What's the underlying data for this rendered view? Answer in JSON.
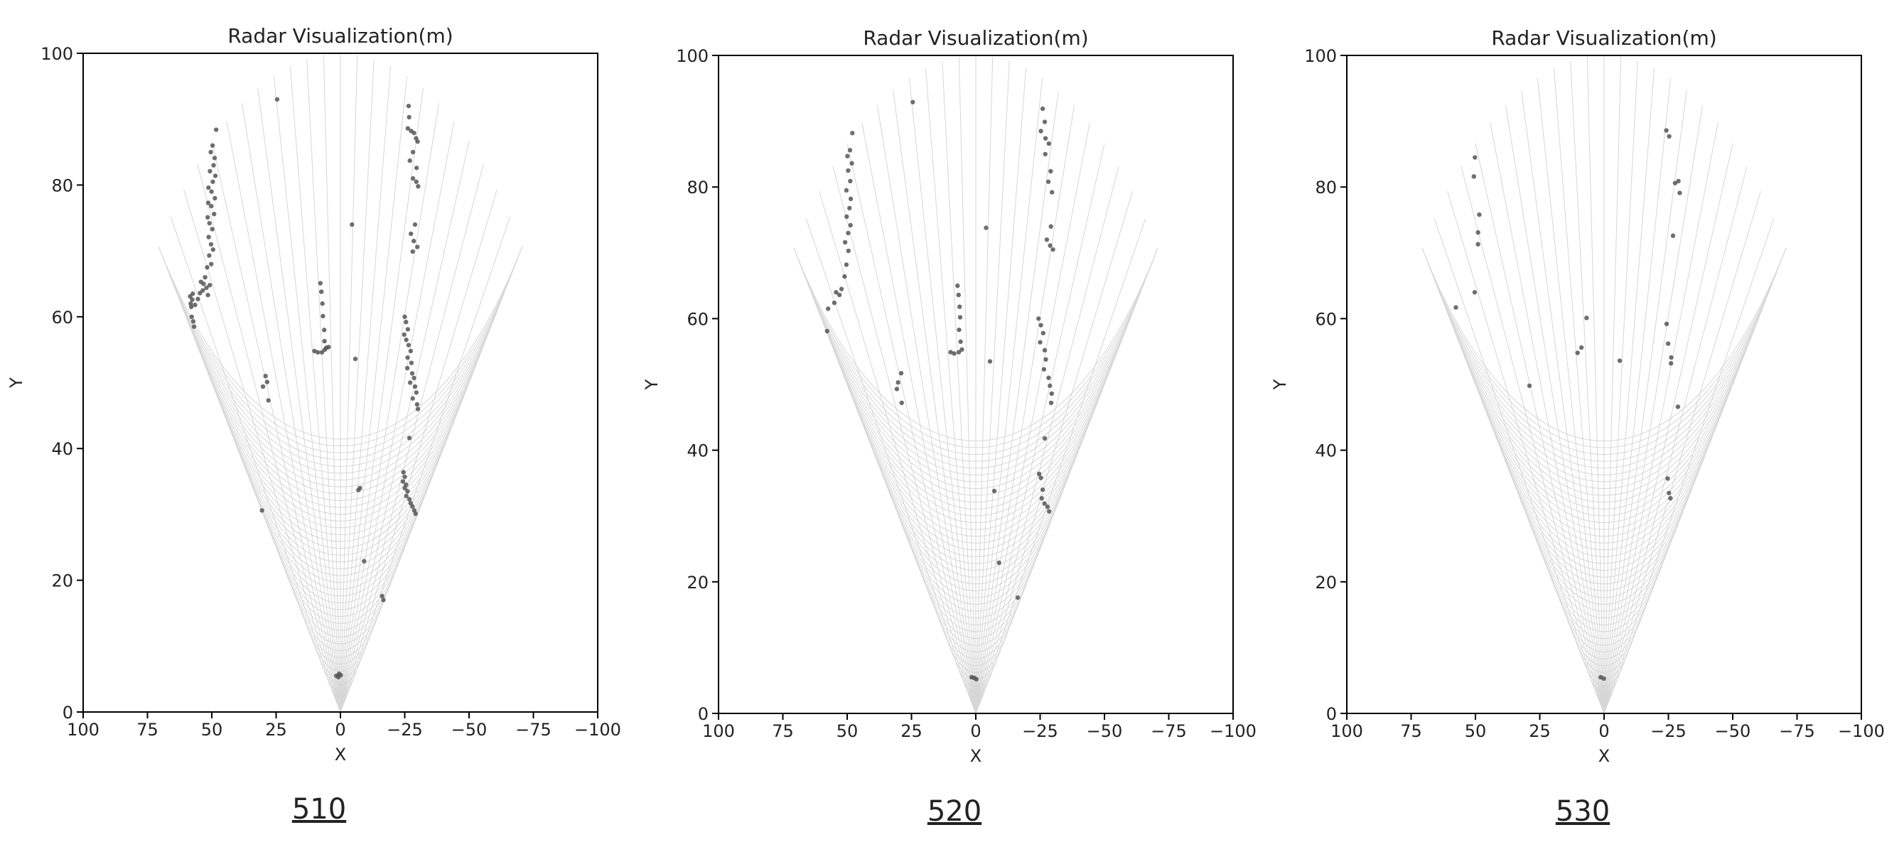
{
  "chart_data": [
    {
      "type": "scatter",
      "title": "Radar Visualization(m)",
      "xlabel": "X",
      "ylabel": "Y",
      "xlim": [
        100,
        -100
      ],
      "ylim": [
        0,
        100
      ],
      "xticks": [
        "100",
        "75",
        "50",
        "25",
        "0",
        "−25",
        "−50",
        "−75",
        "−100"
      ],
      "yticks": [
        "0",
        "20",
        "40",
        "60",
        "80",
        "100"
      ],
      "panel_label": "510",
      "background_sector": "radar fan ±45°, range 0–100 m",
      "point_color": "#555555",
      "points": [
        [
          56.9,
          58.5
        ],
        [
          57.2,
          59.3
        ],
        [
          57.8,
          60.0
        ],
        [
          58.0,
          61.5
        ],
        [
          58.2,
          62.0
        ],
        [
          57.6,
          62.6
        ],
        [
          58.4,
          63.1
        ],
        [
          57.4,
          63.5
        ],
        [
          56.5,
          61.8
        ],
        [
          55.4,
          62.7
        ],
        [
          54.6,
          63.6
        ],
        [
          53.5,
          64.0
        ],
        [
          52.1,
          64.4
        ],
        [
          51.5,
          63.3
        ],
        [
          50.8,
          64.8
        ],
        [
          53.2,
          65.0
        ],
        [
          54.2,
          65.3
        ],
        [
          52.6,
          66.0
        ],
        [
          51.8,
          67.5
        ],
        [
          50.2,
          68.0
        ],
        [
          51.0,
          69.3
        ],
        [
          49.5,
          70.2
        ],
        [
          50.3,
          71.0
        ],
        [
          51.2,
          72.1
        ],
        [
          49.8,
          73.3
        ],
        [
          50.9,
          74.2
        ],
        [
          51.6,
          75.1
        ],
        [
          49.1,
          75.6
        ],
        [
          50.2,
          76.8
        ],
        [
          51.4,
          77.3
        ],
        [
          48.8,
          78.0
        ],
        [
          50.1,
          79.0
        ],
        [
          51.3,
          79.6
        ],
        [
          49.6,
          80.5
        ],
        [
          48.6,
          81.4
        ],
        [
          50.7,
          82.1
        ],
        [
          49.3,
          83.0
        ],
        [
          48.9,
          84.1
        ],
        [
          50.4,
          85.0
        ],
        [
          49.7,
          86.0
        ],
        [
          48.3,
          88.4
        ],
        [
          24.6,
          93.0
        ],
        [
          -26.5,
          92.0
        ],
        [
          -26.7,
          90.3
        ],
        [
          -26.2,
          88.6
        ],
        [
          -27.5,
          88.2
        ],
        [
          -28.6,
          87.9
        ],
        [
          -29.4,
          87.1
        ],
        [
          -30.0,
          86.6
        ],
        [
          -28.2,
          85.0
        ],
        [
          -27.0,
          83.7
        ],
        [
          -29.6,
          82.6
        ],
        [
          -28.2,
          81.0
        ],
        [
          -29.5,
          80.5
        ],
        [
          -30.2,
          79.8
        ],
        [
          -29.0,
          74.0
        ],
        [
          -27.4,
          72.6
        ],
        [
          -28.5,
          71.5
        ],
        [
          -29.9,
          70.6
        ],
        [
          -28.1,
          69.9
        ],
        [
          7.8,
          65.1
        ],
        [
          7.4,
          63.8
        ],
        [
          7.0,
          62.0
        ],
        [
          6.8,
          60.1
        ],
        [
          6.3,
          58.0
        ],
        [
          6.2,
          56.3
        ],
        [
          4.6,
          55.4
        ],
        [
          5.5,
          55.3
        ],
        [
          6.1,
          55.0
        ],
        [
          7.2,
          54.6
        ],
        [
          8.8,
          54.6
        ],
        [
          10.1,
          54.8
        ],
        [
          -4.5,
          74.0
        ],
        [
          -5.8,
          53.6
        ],
        [
          -25.0,
          60.0
        ],
        [
          -25.5,
          59.2
        ],
        [
          -26.2,
          58.1
        ],
        [
          -24.8,
          57.3
        ],
        [
          -25.6,
          56.5
        ],
        [
          -26.5,
          55.7
        ],
        [
          -27.3,
          54.8
        ],
        [
          -26.1,
          53.8
        ],
        [
          -27.6,
          53.0
        ],
        [
          -26.0,
          52.2
        ],
        [
          -27.9,
          51.4
        ],
        [
          -28.6,
          50.7
        ],
        [
          -27.1,
          50.0
        ],
        [
          -29.0,
          49.4
        ],
        [
          -29.5,
          48.5
        ],
        [
          -28.1,
          47.6
        ],
        [
          -29.8,
          46.7
        ],
        [
          -30.1,
          46.0
        ],
        [
          -26.8,
          41.6
        ],
        [
          -24.5,
          36.4
        ],
        [
          -25.0,
          35.7
        ],
        [
          -24.3,
          35.0
        ],
        [
          -25.5,
          34.5
        ],
        [
          -25.0,
          34.0
        ],
        [
          -26.1,
          33.5
        ],
        [
          -25.6,
          32.8
        ],
        [
          -26.8,
          32.3
        ],
        [
          -27.3,
          31.7
        ],
        [
          -28.0,
          31.2
        ],
        [
          -28.7,
          30.6
        ],
        [
          -29.2,
          30.1
        ],
        [
          29.1,
          51.0
        ],
        [
          28.5,
          50.1
        ],
        [
          30.1,
          49.4
        ],
        [
          28.0,
          47.3
        ],
        [
          30.5,
          30.6
        ],
        [
          -7.6,
          34.0
        ],
        [
          -7.0,
          33.7
        ],
        [
          -9.2,
          22.9
        ],
        [
          -16.2,
          17.6
        ],
        [
          -16.7,
          17.0
        ],
        [
          1.6,
          5.5
        ],
        [
          0.8,
          5.3
        ],
        [
          -0.1,
          5.6
        ],
        [
          0.5,
          5.8
        ]
      ]
    },
    {
      "type": "scatter",
      "title": "Radar Visualization(m)",
      "xlabel": "X",
      "ylabel": "Y",
      "xlim": [
        100,
        -100
      ],
      "ylim": [
        0,
        100
      ],
      "xticks": [
        "100",
        "75",
        "50",
        "25",
        "0",
        "−25",
        "−50",
        "−75",
        "−100"
      ],
      "yticks": [
        "0",
        "20",
        "40",
        "60",
        "80",
        "100"
      ],
      "panel_label": "520",
      "background_sector": "radar fan ±45°, range 0–100 m",
      "point_color": "#555555",
      "points": [
        [
          57.4,
          61.5
        ],
        [
          57.8,
          58.1
        ],
        [
          55.0,
          62.4
        ],
        [
          54.3,
          64.0
        ],
        [
          53.0,
          63.6
        ],
        [
          52.2,
          64.5
        ],
        [
          51.0,
          66.4
        ],
        [
          50.3,
          68.2
        ],
        [
          49.5,
          70.3
        ],
        [
          50.8,
          71.6
        ],
        [
          49.6,
          73.0
        ],
        [
          48.7,
          74.2
        ],
        [
          50.2,
          75.5
        ],
        [
          49.1,
          76.8
        ],
        [
          48.6,
          78.2
        ],
        [
          50.3,
          79.5
        ],
        [
          48.8,
          80.9
        ],
        [
          49.6,
          82.5
        ],
        [
          48.2,
          83.6
        ],
        [
          49.9,
          84.7
        ],
        [
          48.9,
          85.6
        ],
        [
          48.0,
          88.2
        ],
        [
          24.5,
          92.9
        ],
        [
          -26.0,
          91.9
        ],
        [
          -26.8,
          89.9
        ],
        [
          -25.3,
          88.5
        ],
        [
          -27.1,
          87.4
        ],
        [
          -28.4,
          86.6
        ],
        [
          -27.0,
          85.0
        ],
        [
          -29.1,
          82.4
        ],
        [
          -28.2,
          80.8
        ],
        [
          -29.6,
          79.2
        ],
        [
          -29.2,
          74.0
        ],
        [
          -27.6,
          72.0
        ],
        [
          -28.9,
          71.1
        ],
        [
          -30.0,
          70.5
        ],
        [
          7.1,
          65.0
        ],
        [
          6.7,
          63.6
        ],
        [
          6.3,
          61.8
        ],
        [
          6.1,
          60.2
        ],
        [
          6.5,
          58.3
        ],
        [
          5.9,
          56.5
        ],
        [
          5.4,
          55.3
        ],
        [
          6.6,
          54.9
        ],
        [
          8.4,
          54.7
        ],
        [
          9.8,
          54.9
        ],
        [
          -4.0,
          73.8
        ],
        [
          -5.5,
          53.5
        ],
        [
          -24.4,
          60.0
        ],
        [
          -25.3,
          59.0
        ],
        [
          -26.2,
          57.8
        ],
        [
          -25.0,
          56.4
        ],
        [
          -26.8,
          55.2
        ],
        [
          -27.2,
          53.8
        ],
        [
          -26.5,
          52.3
        ],
        [
          -28.3,
          51.0
        ],
        [
          -28.8,
          49.8
        ],
        [
          -29.5,
          48.6
        ],
        [
          -29.3,
          47.2
        ],
        [
          -26.8,
          41.8
        ],
        [
          -24.6,
          36.4
        ],
        [
          -25.3,
          35.8
        ],
        [
          -26.0,
          34.0
        ],
        [
          -25.6,
          32.7
        ],
        [
          -26.7,
          31.9
        ],
        [
          -27.9,
          31.4
        ],
        [
          -28.5,
          30.7
        ],
        [
          29.0,
          51.7
        ],
        [
          30.2,
          50.3
        ],
        [
          30.7,
          49.3
        ],
        [
          28.8,
          47.2
        ],
        [
          -7.2,
          33.8
        ],
        [
          -9.0,
          22.9
        ],
        [
          -16.3,
          17.6
        ],
        [
          1.6,
          5.5
        ],
        [
          0.6,
          5.4
        ],
        [
          -0.2,
          5.2
        ]
      ]
    },
    {
      "type": "scatter",
      "title": "Radar Visualization(m)",
      "xlabel": "X",
      "ylabel": "Y",
      "xlim": [
        100,
        -100
      ],
      "ylim": [
        0,
        100
      ],
      "xticks": [
        "100",
        "75",
        "50",
        "25",
        "0",
        "−25",
        "−50",
        "−75",
        "−100"
      ],
      "yticks": [
        "0",
        "20",
        "40",
        "60",
        "80",
        "100"
      ],
      "panel_label": "530",
      "background_sector": "radar fan ±45°, range 0–100 m",
      "point_color": "#555555",
      "points": [
        [
          57.6,
          61.7
        ],
        [
          50.3,
          64.0
        ],
        [
          49.0,
          71.3
        ],
        [
          49.0,
          73.1
        ],
        [
          48.5,
          75.8
        ],
        [
          50.6,
          81.6
        ],
        [
          50.2,
          84.5
        ],
        [
          -24.2,
          88.6
        ],
        [
          -25.3,
          87.7
        ],
        [
          -27.6,
          80.6
        ],
        [
          -28.9,
          80.9
        ],
        [
          -29.4,
          79.1
        ],
        [
          -26.8,
          72.6
        ],
        [
          6.8,
          60.1
        ],
        [
          8.8,
          55.6
        ],
        [
          10.3,
          54.8
        ],
        [
          -6.1,
          53.6
        ],
        [
          -24.3,
          59.2
        ],
        [
          -24.9,
          56.2
        ],
        [
          -26.1,
          54.1
        ],
        [
          -26.0,
          53.2
        ],
        [
          -28.7,
          46.6
        ],
        [
          29.0,
          49.8
        ],
        [
          -24.7,
          35.7
        ],
        [
          -25.2,
          33.5
        ],
        [
          -25.8,
          32.7
        ],
        [
          1.3,
          5.5
        ],
        [
          0.1,
          5.3
        ]
      ]
    }
  ]
}
